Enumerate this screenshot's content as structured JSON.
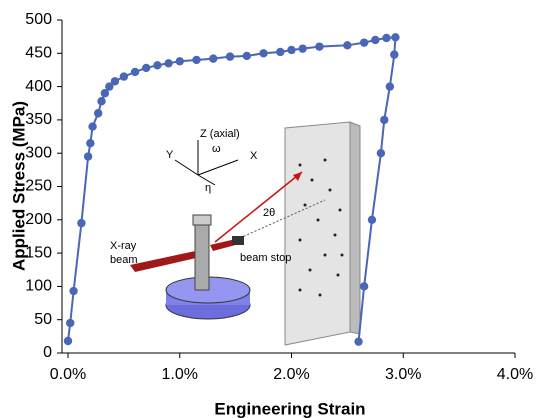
{
  "chart_data": {
    "type": "line",
    "x_label": "Engineering Strain",
    "y_label": "Applied Stress (MPa)",
    "x": [
      0.0,
      0.02,
      0.05,
      0.12,
      0.18,
      0.2,
      0.22,
      0.27,
      0.3,
      0.33,
      0.37,
      0.42,
      0.5,
      0.6,
      0.7,
      0.8,
      0.9,
      1.0,
      1.15,
      1.3,
      1.45,
      1.6,
      1.75,
      1.9,
      2.0,
      2.1,
      2.25,
      2.5,
      2.65,
      2.75,
      2.85,
      2.93,
      2.92,
      2.88,
      2.83,
      2.8,
      2.72,
      2.65,
      2.6
    ],
    "series": [
      {
        "color": "#4a67b5",
        "values": [
          18,
          45,
          93,
          195,
          295,
          315,
          340,
          360,
          378,
          390,
          400,
          408,
          415,
          422,
          428,
          432,
          435,
          438,
          440,
          442,
          445,
          446,
          450,
          452,
          455,
          457,
          460,
          462,
          466,
          470,
          473,
          474,
          448,
          400,
          350,
          300,
          200,
          100,
          17
        ]
      }
    ],
    "xlim": [
      0,
      4
    ],
    "xticks": [
      {
        "value": 0,
        "label": "0.0%"
      },
      {
        "value": 1,
        "label": "1.0%"
      },
      {
        "value": 2,
        "label": "2.0%"
      },
      {
        "value": 3,
        "label": "3.0%"
      },
      {
        "value": 4,
        "label": "4.0%"
      }
    ],
    "ylim": [
      0,
      500
    ],
    "yticks": [
      0,
      50,
      100,
      150,
      200,
      250,
      300,
      350,
      400,
      450,
      500
    ],
    "annotations": [
      "Z (axial)",
      "ω",
      "Y",
      "X",
      "η",
      "X-ray",
      "beam",
      "beam stop",
      "2θ"
    ]
  }
}
